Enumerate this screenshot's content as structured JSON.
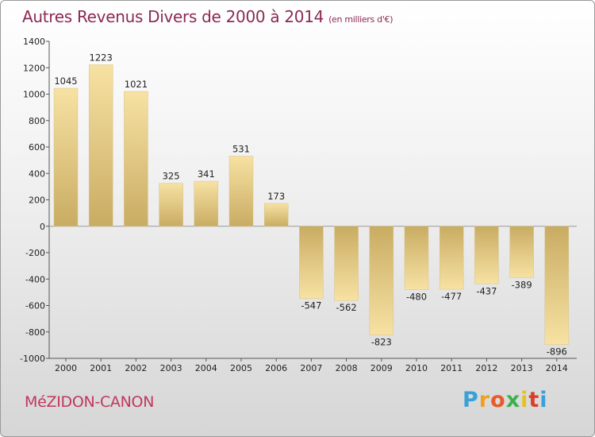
{
  "header": {
    "title": "Autres Revenus Divers de 2000 à 2014",
    "subtitle": "(en milliers d'€)"
  },
  "footer": {
    "commune": "MéZIDON-CANON",
    "brand": "Proxiti"
  },
  "colors": {
    "title": "#8b2a55",
    "bar_dark": "#c9ac63",
    "bar_light": "#f7e2a3",
    "commune": "#c0385e"
  },
  "chart_data": {
    "type": "bar",
    "categories": [
      "2000",
      "2001",
      "2002",
      "2003",
      "2004",
      "2005",
      "2006",
      "2007",
      "2008",
      "2009",
      "2010",
      "2011",
      "2012",
      "2013",
      "2014"
    ],
    "values": [
      1045,
      1223,
      1021,
      325,
      341,
      531,
      173,
      -547,
      -562,
      -823,
      -480,
      -477,
      -437,
      -389,
      -896
    ],
    "ylim": [
      -1000,
      1400
    ],
    "yticks": [
      1400,
      1200,
      1000,
      800,
      600,
      400,
      200,
      0,
      -200,
      -400,
      -600,
      -800,
      -1000
    ],
    "grid": false,
    "legend": "none"
  }
}
